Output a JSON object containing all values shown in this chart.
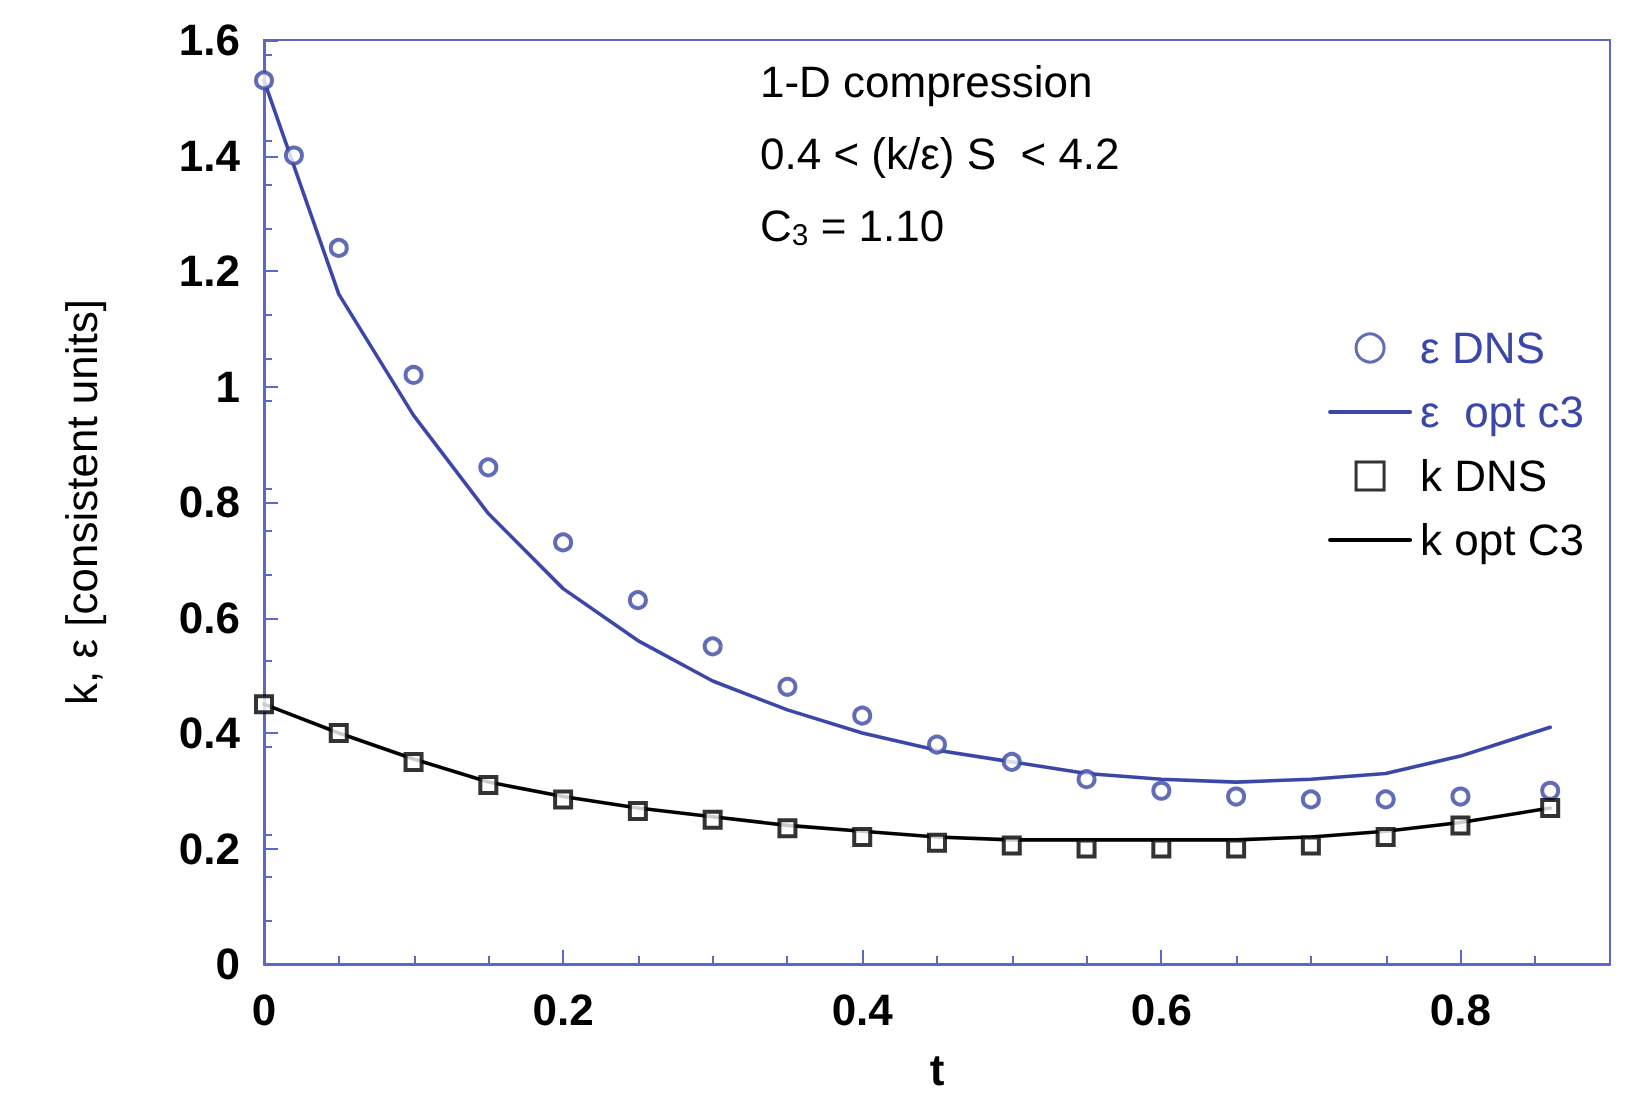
{
  "chart_data": {
    "type": "line",
    "xlabel": "t",
    "ylabel": "k, ε [consistent units]",
    "annotations": [
      "1-D compression",
      "0.4 < (k/ε) S  < 4.2",
      "C$_{3}$ = 1.10"
    ],
    "xlim": [
      0,
      0.9
    ],
    "xticks": [
      0,
      0.2,
      0.4,
      0.6,
      0.8
    ],
    "ylim": [
      0,
      1.6
    ],
    "yticks": [
      0,
      0.2,
      0.4,
      0.6,
      0.8,
      1,
      1.2,
      1.4,
      1.6
    ],
    "grid": false,
    "legend": "top right",
    "series": [
      {
        "name": "ε DNS",
        "type": "scatter",
        "marker": "circle",
        "color": "#3a47a8",
        "x": [
          0,
          0.02,
          0.05,
          0.1,
          0.15,
          0.2,
          0.25,
          0.3,
          0.35,
          0.4,
          0.45,
          0.5,
          0.55,
          0.6,
          0.65,
          0.7,
          0.75,
          0.8,
          0.86
        ],
        "values": [
          1.53,
          1.4,
          1.24,
          1.02,
          0.86,
          0.73,
          0.63,
          0.55,
          0.48,
          0.43,
          0.38,
          0.35,
          0.32,
          0.3,
          0.29,
          0.285,
          0.285,
          0.29,
          0.3
        ]
      },
      {
        "name": "ε  opt c3",
        "type": "line",
        "marker": "none",
        "color": "#3a47a8",
        "x": [
          0,
          0.05,
          0.1,
          0.15,
          0.2,
          0.25,
          0.3,
          0.35,
          0.4,
          0.45,
          0.5,
          0.55,
          0.6,
          0.65,
          0.7,
          0.75,
          0.8,
          0.86
        ],
        "values": [
          1.53,
          1.16,
          0.95,
          0.78,
          0.65,
          0.56,
          0.49,
          0.44,
          0.4,
          0.37,
          0.35,
          0.33,
          0.32,
          0.315,
          0.32,
          0.33,
          0.36,
          0.41
        ]
      },
      {
        "name": "k DNS",
        "type": "scatter",
        "marker": "square",
        "color": "#000000",
        "x": [
          0,
          0.05,
          0.1,
          0.15,
          0.2,
          0.25,
          0.3,
          0.35,
          0.4,
          0.45,
          0.5,
          0.55,
          0.6,
          0.65,
          0.7,
          0.75,
          0.8,
          0.86
        ],
        "values": [
          0.45,
          0.4,
          0.35,
          0.31,
          0.285,
          0.265,
          0.25,
          0.235,
          0.22,
          0.21,
          0.205,
          0.2,
          0.2,
          0.2,
          0.205,
          0.22,
          0.24,
          0.27
        ]
      },
      {
        "name": "k opt C3",
        "type": "line",
        "marker": "none",
        "color": "#000000",
        "x": [
          0,
          0.05,
          0.1,
          0.15,
          0.2,
          0.25,
          0.3,
          0.35,
          0.4,
          0.45,
          0.5,
          0.55,
          0.6,
          0.65,
          0.7,
          0.75,
          0.8,
          0.86
        ],
        "values": [
          0.45,
          0.4,
          0.355,
          0.315,
          0.29,
          0.27,
          0.255,
          0.24,
          0.23,
          0.22,
          0.215,
          0.215,
          0.215,
          0.215,
          0.22,
          0.23,
          0.245,
          0.27
        ]
      }
    ]
  }
}
